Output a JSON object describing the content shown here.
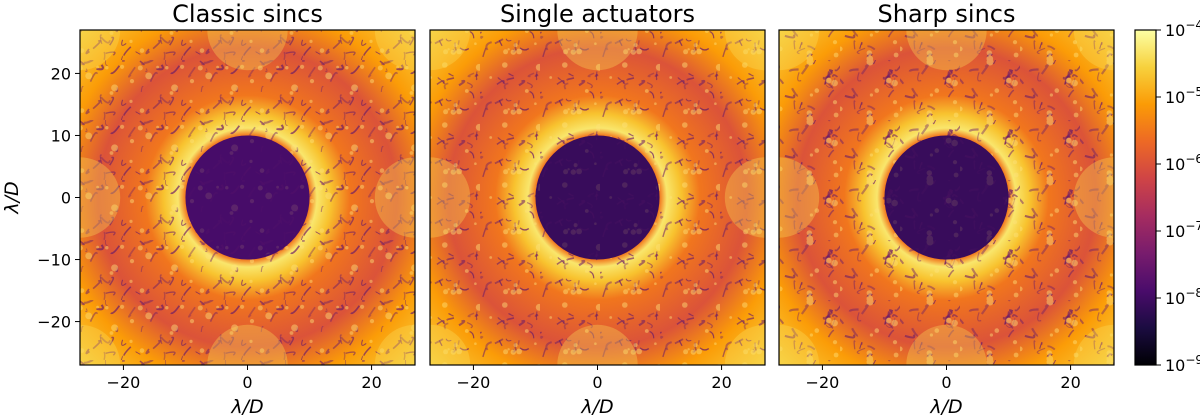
{
  "chart_data": [
    {
      "type": "heatmap",
      "title": "Classic sincs",
      "xlabel": "λ/D",
      "ylabel": "λ/D",
      "xlim": [
        -27,
        27
      ],
      "ylim": [
        -27,
        27
      ],
      "xticks": [
        -20,
        0,
        20
      ],
      "yticks": [
        -20,
        -10,
        0,
        10,
        20
      ],
      "dark_hole_radius": 10,
      "dark_hole_level": 3e-09,
      "ring_level": 5e-05,
      "background_level": 1e-06
    },
    {
      "type": "heatmap",
      "title": "Single actuators",
      "xlabel": "λ/D",
      "ylabel": "",
      "xlim": [
        -27,
        27
      ],
      "ylim": [
        -27,
        27
      ],
      "xticks": [
        -20,
        0,
        20
      ],
      "yticks": [],
      "dark_hole_radius": 10,
      "dark_hole_level": 2e-09,
      "ring_level": 5e-05,
      "background_level": 1e-06
    },
    {
      "type": "heatmap",
      "title": "Sharp sincs",
      "xlabel": "λ/D",
      "ylabel": "",
      "xlim": [
        -27,
        27
      ],
      "ylim": [
        -27,
        27
      ],
      "xticks": [
        -20,
        0,
        20
      ],
      "yticks": [],
      "dark_hole_radius": 10,
      "dark_hole_level": 2e-09,
      "ring_level": 5e-05,
      "background_level": 1e-06
    }
  ],
  "colorbar": {
    "scale": "log",
    "colormap": "inferno",
    "range": [
      1e-09,
      0.0001
    ],
    "ticks": [
      {
        "mantissa": "10",
        "exp": "−4"
      },
      {
        "mantissa": "10",
        "exp": "−5"
      },
      {
        "mantissa": "10",
        "exp": "−6"
      },
      {
        "mantissa": "10",
        "exp": "−7"
      },
      {
        "mantissa": "10",
        "exp": "−8"
      },
      {
        "mantissa": "10",
        "exp": "−9"
      }
    ]
  },
  "colors": {
    "cmap_stops": [
      "#000004",
      "#1b0c41",
      "#4a0c6b",
      "#781c6d",
      "#a52c60",
      "#cf4446",
      "#ed6925",
      "#fb9b06",
      "#f7d13d",
      "#fcffa4"
    ]
  }
}
